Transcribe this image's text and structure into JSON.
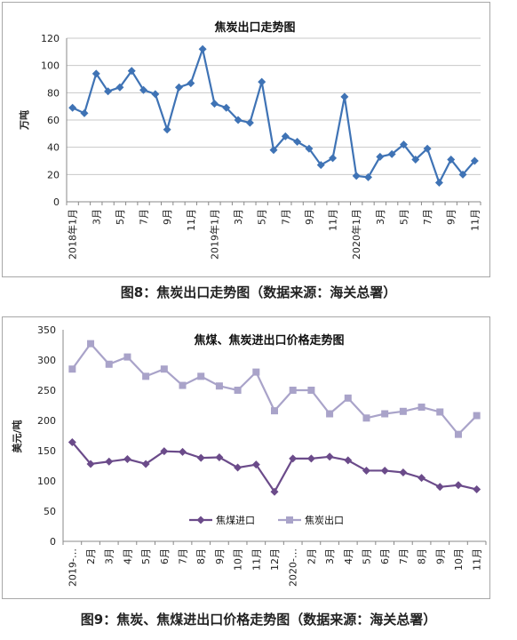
{
  "chart_data": [
    {
      "type": "line",
      "title": "焦炭出口走势图",
      "ylabel": "万吨",
      "ylim": [
        0,
        120
      ],
      "yticks": [
        0,
        20,
        40,
        60,
        80,
        100,
        120
      ],
      "grid": true,
      "x": [
        "2018年1月",
        "2018年2月",
        "2018年3月",
        "2018年4月",
        "2018年5月",
        "2018年6月",
        "2018年7月",
        "2018年8月",
        "2018年9月",
        "2018年10月",
        "2018年11月",
        "2018年12月",
        "2019年1月",
        "2019年2月",
        "2019年3月",
        "2019年4月",
        "2019年5月",
        "2019年6月",
        "2019年7月",
        "2019年8月",
        "2019年9月",
        "2019年10月",
        "2019年11月",
        "2019年12月",
        "2020年1月",
        "2020年2月",
        "2020年3月",
        "2020年4月",
        "2020年5月",
        "2020年6月",
        "2020年7月",
        "2020年8月",
        "2020年9月",
        "2020年10月",
        "2020年11月"
      ],
      "xtick_labels": [
        "2018年1月",
        "",
        "3月",
        "",
        "5月",
        "",
        "7月",
        "",
        "9月",
        "",
        "11月",
        "",
        "2019年1月",
        "",
        "3月",
        "",
        "5月",
        "",
        "7月",
        "",
        "9月",
        "",
        "11月",
        "",
        "2020年1月",
        "",
        "3月",
        "",
        "5月",
        "",
        "7月",
        "",
        "9月",
        "",
        "11月"
      ],
      "series": [
        {
          "color": "#3f73b5",
          "values": [
            69,
            65,
            94,
            81,
            84,
            96,
            82,
            79,
            53,
            84,
            87,
            112,
            72,
            69,
            60,
            58,
            88,
            38,
            48,
            44,
            39,
            27,
            32,
            77,
            19,
            18,
            33,
            35,
            42,
            31,
            39,
            14,
            31,
            20,
            30
          ]
        }
      ]
    },
    {
      "type": "line",
      "title": "焦煤、焦炭进出口价格走势图",
      "ylabel": "美元/吨",
      "ylim": [
        0,
        350
      ],
      "yticks": [
        0,
        50,
        100,
        150,
        200,
        250,
        300,
        350
      ],
      "grid": false,
      "legend": "bottom-center",
      "x": [
        "2019年1月",
        "2019年2月",
        "2019年3月",
        "2019年4月",
        "2019年5月",
        "2019年6月",
        "2019年7月",
        "2019年8月",
        "2019年9月",
        "2019年10月",
        "2019年11月",
        "2019年12月",
        "2020年1月",
        "2020年2月",
        "2020年3月",
        "2020年4月",
        "2020年5月",
        "2020年6月",
        "2020年7月",
        "2020年8月",
        "2020年9月",
        "2020年10月",
        "2020年11月"
      ],
      "xtick_labels": [
        "2019-…",
        "2月",
        "3月",
        "4月",
        "5月",
        "6月",
        "7月",
        "8月",
        "9月",
        "10月",
        "11月",
        "12月",
        "2020-…",
        "2月",
        "3月",
        "4月",
        "5月",
        "6月",
        "7月",
        "8月",
        "9月",
        "10月",
        "11月"
      ],
      "series": [
        {
          "name": "焦煤进口",
          "color": "#6b4b8a",
          "marker": "diamond",
          "values": [
            164,
            128,
            132,
            136,
            128,
            149,
            148,
            138,
            139,
            122,
            127,
            82,
            137,
            137,
            140,
            134,
            117,
            117,
            114,
            105,
            90,
            93,
            86
          ]
        },
        {
          "name": "焦炭出口",
          "color": "#a9a3c9",
          "marker": "square",
          "values": [
            285,
            327,
            293,
            305,
            273,
            285,
            258,
            273,
            257,
            250,
            280,
            216,
            250,
            250,
            211,
            237,
            204,
            211,
            215,
            222,
            214,
            177,
            208
          ]
        }
      ]
    }
  ],
  "captions": {
    "fig8": "图8：焦炭出口走势图（数据来源：海关总署）",
    "fig9": "图9：焦炭、焦煤进出口价格走势图（数据来源：海关总署）"
  }
}
